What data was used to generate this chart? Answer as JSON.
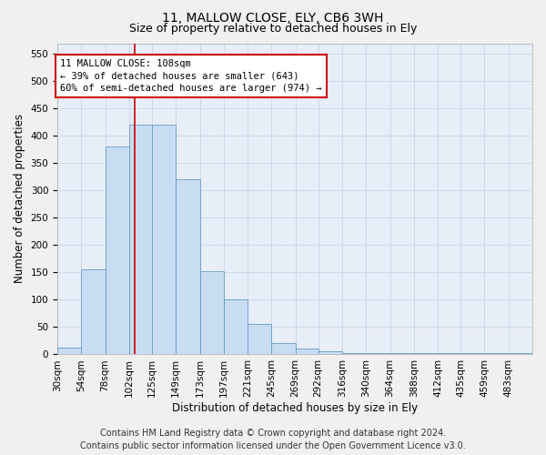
{
  "title": "11, MALLOW CLOSE, ELY, CB6 3WH",
  "subtitle": "Size of property relative to detached houses in Ely",
  "xlabel": "Distribution of detached houses by size in Ely",
  "ylabel": "Number of detached properties",
  "footer_line1": "Contains HM Land Registry data © Crown copyright and database right 2024.",
  "footer_line2": "Contains public sector information licensed under the Open Government Licence v3.0.",
  "bar_edges": [
    30,
    54,
    78,
    102,
    125,
    149,
    173,
    197,
    221,
    245,
    269,
    292,
    316,
    340,
    364,
    388,
    412,
    435,
    459,
    483,
    507
  ],
  "bar_heights": [
    12,
    155,
    380,
    420,
    420,
    320,
    153,
    100,
    55,
    20,
    10,
    5,
    2,
    2,
    2,
    2,
    2,
    2,
    2,
    2
  ],
  "bar_color": "#c9ddf2",
  "bar_edge_color": "#6699cc",
  "property_size": 108,
  "vline_color": "#cc0000",
  "annotation_line1": "11 MALLOW CLOSE: 108sqm",
  "annotation_line2": "← 39% of detached houses are smaller (643)",
  "annotation_line3": "60% of semi-detached houses are larger (974) →",
  "annotation_box_color": "#ffffff",
  "annotation_box_edge_color": "#cc0000",
  "ylim": [
    0,
    570
  ],
  "yticks": [
    0,
    50,
    100,
    150,
    200,
    250,
    300,
    350,
    400,
    450,
    500,
    550
  ],
  "grid_color": "#c8d4e8",
  "background_color": "#e8eef8",
  "fig_background_color": "#f0f0f0",
  "title_fontsize": 10,
  "subtitle_fontsize": 9,
  "axis_label_fontsize": 8.5,
  "tick_fontsize": 7.5,
  "annotation_fontsize": 7.5,
  "footer_fontsize": 7
}
